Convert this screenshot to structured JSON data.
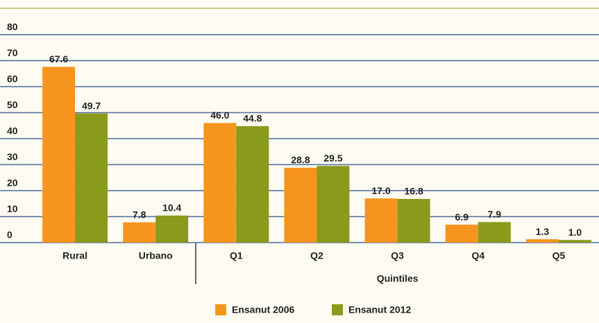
{
  "chart_data": {
    "type": "bar",
    "categories": [
      "Rural",
      "Urbano",
      "Q1",
      "Q2",
      "Q3",
      "Q4",
      "Q5"
    ],
    "x_label": "Quintiles",
    "series": [
      {
        "name": "Ensanut 2006",
        "color": "#f7941d",
        "values": [
          67.6,
          7.8,
          46.0,
          28.8,
          17.0,
          6.9,
          1.3
        ],
        "value_labels": [
          "67.6",
          "7.8",
          "46.0",
          "28.8",
          "17.0",
          "6.9",
          "1.3"
        ]
      },
      {
        "name": "Ensanut 2012",
        "color": "#8a9a1b",
        "values": [
          49.7,
          10.4,
          44.8,
          29.5,
          16.8,
          7.9,
          1.0
        ],
        "value_labels": [
          "49.7",
          "10.4",
          "44.8",
          "29.5",
          "16.8",
          "7.9",
          "1.0"
        ]
      }
    ],
    "ylim": [
      0,
      80
    ],
    "yticks": [
      0,
      10,
      20,
      30,
      40,
      50,
      60,
      70,
      80
    ],
    "grid": true,
    "legend": "bottom"
  }
}
